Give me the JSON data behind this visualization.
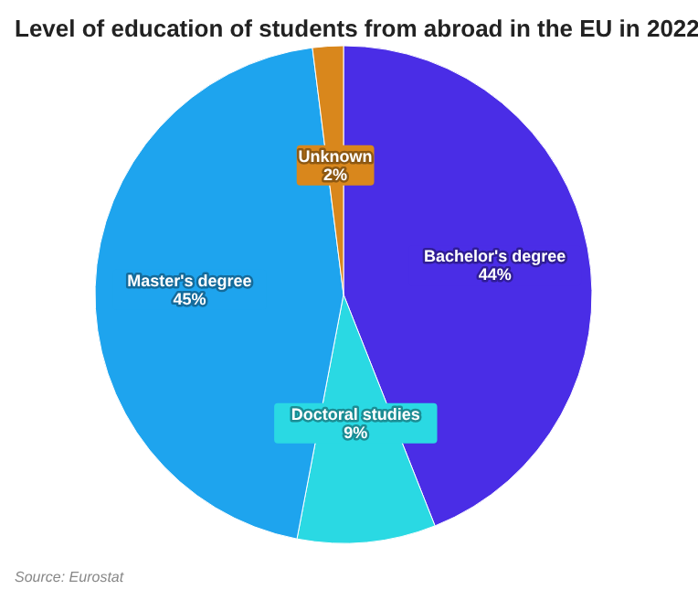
{
  "chart_data": {
    "type": "pie",
    "title": "Level of education of students from abroad in the EU in 2022",
    "categories": [
      "Bachelor's degree",
      "Doctoral studies",
      "Master's degree",
      "Unknown"
    ],
    "values": [
      44,
      9,
      45,
      2
    ],
    "colors": [
      "#4a2de6",
      "#2ad9e3",
      "#1ea4ee",
      "#d9871c"
    ],
    "value_labels": [
      "44%",
      "9%",
      "45%",
      "2%"
    ],
    "annotations": [
      "Source: Eurostat"
    ]
  }
}
